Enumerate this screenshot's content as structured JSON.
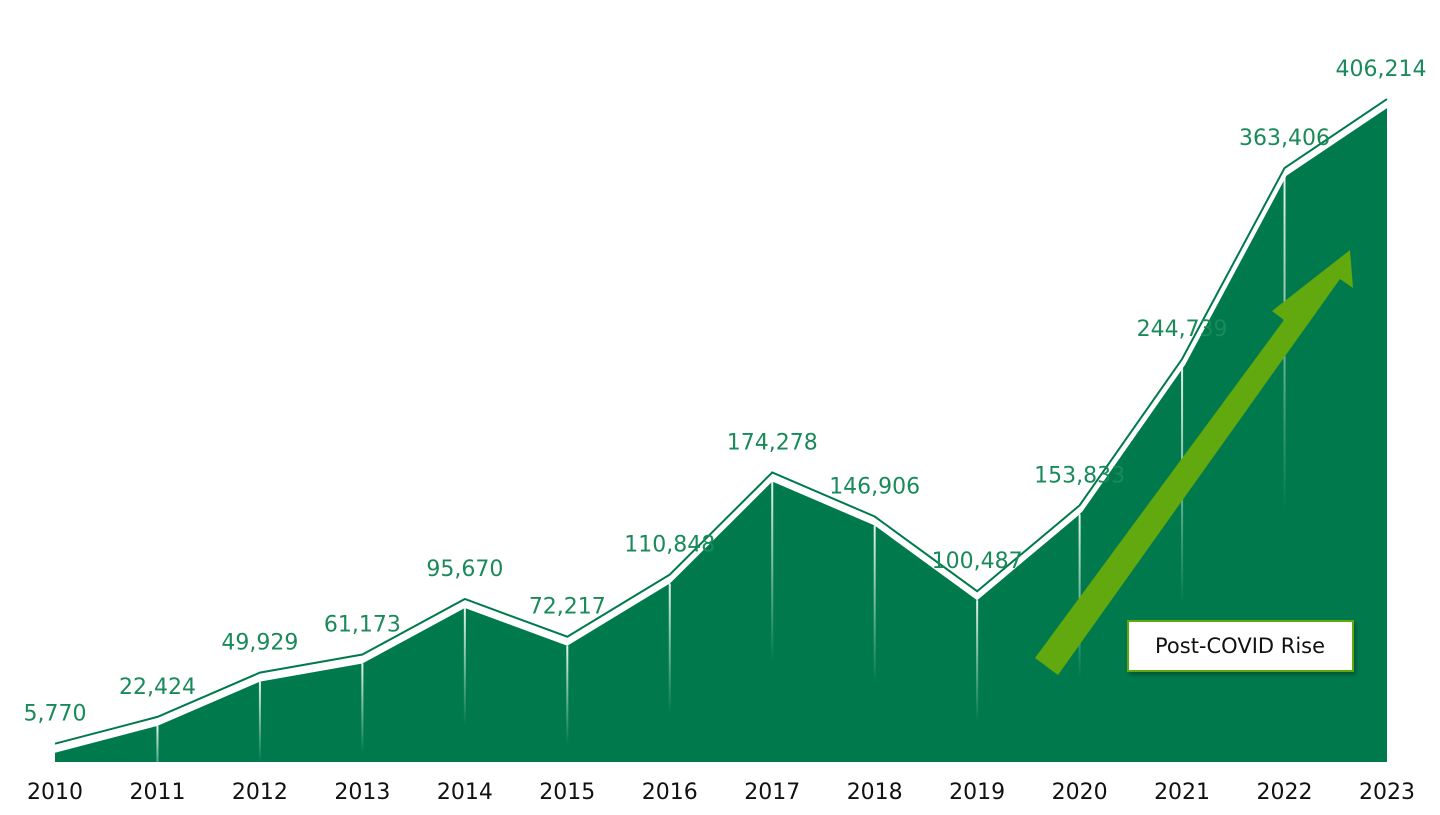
{
  "chart_data": {
    "type": "area",
    "categories": [
      "2010",
      "2011",
      "2012",
      "2013",
      "2014",
      "2015",
      "2016",
      "2017",
      "2018",
      "2019",
      "2020",
      "2021",
      "2022",
      "2023"
    ],
    "values": [
      5770,
      22424,
      49929,
      61173,
      95670,
      72217,
      110848,
      174278,
      146906,
      100487,
      153833,
      244739,
      363406,
      406214
    ],
    "value_labels": [
      "5,770",
      "22,424",
      "49,929",
      "61,173",
      "95,670",
      "72,217",
      "110,848",
      "174,278",
      "146,906",
      "100,487",
      "153,833",
      "244,739",
      "363,406",
      "406,214"
    ],
    "color": "#007a4d",
    "label_color": "#1a8a5a",
    "ylim": [
      0,
      410000
    ],
    "annotation": "Post-COVID Rise"
  }
}
